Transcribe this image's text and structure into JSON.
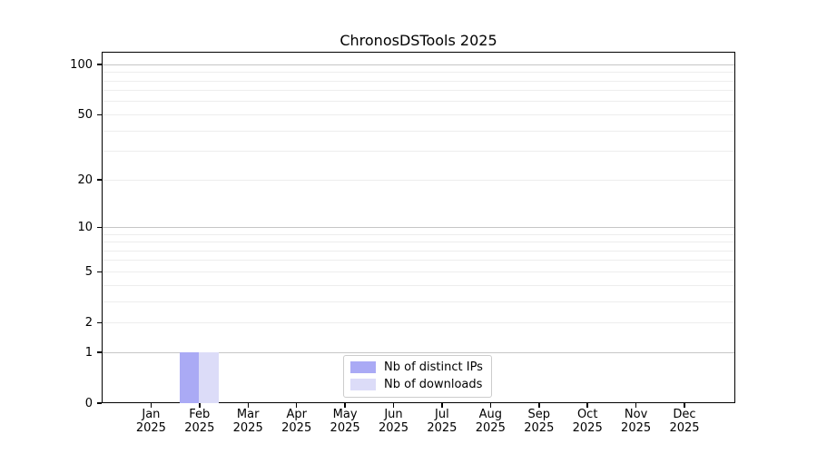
{
  "chart_data": {
    "type": "bar",
    "title": "ChronosDSTools 2025",
    "categories": [
      "Jan 2025",
      "Feb 2025",
      "Mar 2025",
      "Apr 2025",
      "May 2025",
      "Jun 2025",
      "Jul 2025",
      "Aug 2025",
      "Sep 2025",
      "Oct 2025",
      "Nov 2025",
      "Dec 2025"
    ],
    "series": [
      {
        "name": "Nb of distinct IPs",
        "color": "#aaaaf5",
        "values": [
          0,
          1,
          0,
          0,
          0,
          0,
          0,
          0,
          0,
          0,
          0,
          0
        ]
      },
      {
        "name": "Nb of downloads",
        "color": "#dcdcf8",
        "values": [
          0,
          1,
          0,
          0,
          0,
          0,
          0,
          0,
          0,
          0,
          0,
          0
        ]
      }
    ],
    "xlabel": "",
    "ylabel": "",
    "y_axis": {
      "scale": "log1p",
      "tick_values": [
        0,
        1,
        2,
        5,
        10,
        20,
        50,
        100
      ],
      "tick_labels": [
        "0",
        "1",
        "2",
        "5",
        "10",
        "20",
        "50",
        "100"
      ],
      "major_gridlines": [
        1,
        10,
        100
      ],
      "minor_gridlines": [
        2,
        3,
        4,
        5,
        6,
        7,
        8,
        9,
        20,
        30,
        40,
        50,
        60,
        70,
        80,
        90
      ],
      "ylim": [
        0,
        117
      ]
    },
    "grid": "horizontal",
    "legend": {
      "position": "lower center",
      "entries": [
        "Nb of distinct IPs",
        "Nb of downloads"
      ]
    }
  },
  "style": {
    "background": "#ffffff",
    "spine_color": "#000000",
    "major_grid_color": "#c6c6c6",
    "minor_grid_color": "#ededed",
    "legend_border_color": "#cccccc",
    "text_color": "#000000",
    "bar_colors": [
      "#aaaaf5",
      "#dcdcf8"
    ]
  }
}
